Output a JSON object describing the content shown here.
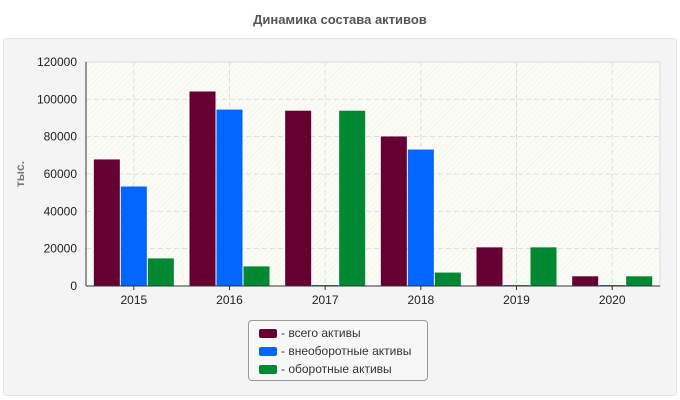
{
  "chart_data": {
    "type": "bar",
    "title": "Динамика состава активов",
    "xlabel": "",
    "ylabel": "тыс.",
    "ylim": [
      0,
      120000
    ],
    "yticks": [
      "0",
      "20000",
      "40000",
      "60000",
      "80000",
      "100000",
      "120000"
    ],
    "categories": [
      "2015",
      "2016",
      "2017",
      "2018",
      "2019",
      "2020"
    ],
    "legend_position": "bottom",
    "grid": true,
    "series": [
      {
        "name": "- всего активы",
        "color": "#660033",
        "values": [
          67800,
          104200,
          93900,
          80100,
          20700,
          5200
        ]
      },
      {
        "name": "- внеоборотные активы",
        "color": "#0066ff",
        "values": [
          53300,
          94500,
          500,
          73100,
          500,
          500
        ]
      },
      {
        "name": "- оборотные активы",
        "color": "#008833",
        "values": [
          14800,
          10500,
          93900,
          7200,
          20700,
          5200
        ]
      }
    ]
  }
}
